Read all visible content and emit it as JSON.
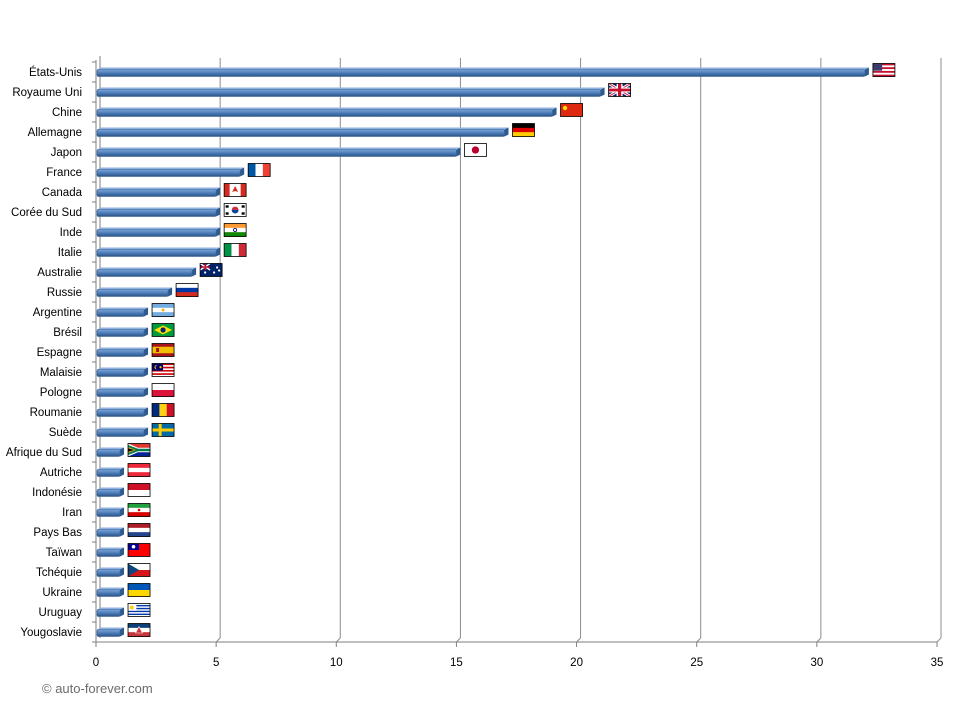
{
  "chart_data": {
    "type": "bar",
    "orientation": "horizontal",
    "categories": [
      "États-Unis",
      "Royaume Uni",
      "Chine",
      "Allemagne",
      "Japon",
      "France",
      "Canada",
      "Corée du Sud",
      "Inde",
      "Italie",
      "Australie",
      "Russie",
      "Argentine",
      "Brésil",
      "Espagne",
      "Malaisie",
      "Pologne",
      "Roumanie",
      "Suède",
      "Afrique du Sud",
      "Autriche",
      "Indonésie",
      "Iran",
      "Pays Bas",
      "Taïwan",
      "Tchéquie",
      "Ukraine",
      "Uruguay",
      "Yougoslavie"
    ],
    "values": [
      32,
      21,
      19,
      17,
      15,
      6,
      5,
      5,
      5,
      5,
      4,
      3,
      2,
      2,
      2,
      2,
      2,
      2,
      2,
      1,
      1,
      1,
      1,
      1,
      1,
      1,
      1,
      1,
      1
    ],
    "flags": [
      "us",
      "uk",
      "china",
      "germany",
      "japan",
      "france",
      "canada",
      "korea",
      "india",
      "italy",
      "australia",
      "russia",
      "argentina",
      "brazil",
      "spain",
      "malaysia",
      "poland",
      "romania",
      "sweden",
      "south-africa",
      "austria",
      "indonesia",
      "iran",
      "netherlands",
      "taiwan",
      "czech",
      "ukraine",
      "uruguay",
      "yugoslavia"
    ],
    "xticks": [
      "0",
      "5",
      "10",
      "15",
      "20",
      "25",
      "30",
      "35"
    ],
    "xlim": [
      0,
      35
    ],
    "grid": "vertical",
    "bar_color": "#4f81bd"
  },
  "credit": "© auto-forever.com"
}
